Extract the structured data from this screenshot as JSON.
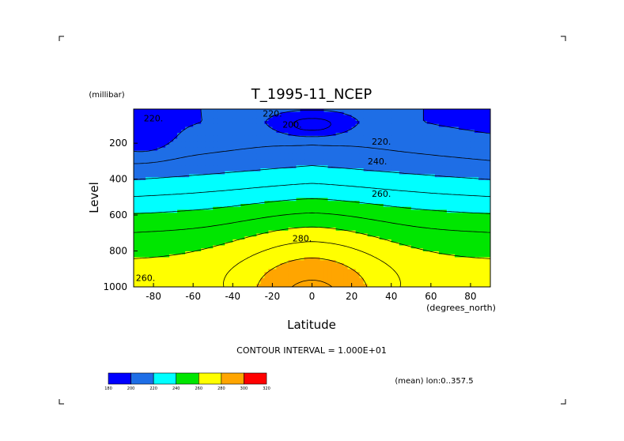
{
  "chart_data": {
    "type": "contour",
    "title": "T_1995-11_NCEP",
    "xlabel": "Latitude",
    "x_units": "(degrees_north)",
    "ylabel": "Level",
    "y_units": "(millibar)",
    "xlim": [
      -90,
      90
    ],
    "ylim": [
      1000,
      10
    ],
    "y_inverted": true,
    "x_ticks": [
      -80,
      -60,
      -40,
      -20,
      0,
      20,
      40,
      60,
      80
    ],
    "y_ticks": [
      200,
      400,
      600,
      800,
      1000
    ],
    "contour_interval_text": "CONTOUR INTERVAL = 1.000E+01",
    "contour_levels": [
      190,
      200,
      210,
      220,
      230,
      240,
      250,
      260,
      270,
      280,
      290
    ],
    "contour_labels": [
      {
        "text": "220.",
        "x": -80,
        "y": 60
      },
      {
        "text": "220.",
        "x": -20,
        "y": 35
      },
      {
        "text": "200.",
        "x": -10,
        "y": 95
      },
      {
        "text": "220.",
        "x": 35,
        "y": 190
      },
      {
        "text": "240.",
        "x": 33,
        "y": 300
      },
      {
        "text": "260.",
        "x": 35,
        "y": 480
      },
      {
        "text": "280.",
        "x": -5,
        "y": 730
      },
      {
        "text": "260.",
        "x": -84,
        "y": 950
      }
    ],
    "colorbar": {
      "values": [
        "180",
        "200",
        "220",
        "240",
        "260",
        "280",
        "300",
        "320"
      ],
      "colors": [
        "#0000ff",
        "#1e6ee6",
        "#00ffff",
        "#00e600",
        "#ffff00",
        "#ffa500",
        "#ff0000"
      ]
    },
    "footnote": "(mean) lon:0..357.5",
    "grid": false,
    "legend": "colorbar-bottom-left"
  }
}
